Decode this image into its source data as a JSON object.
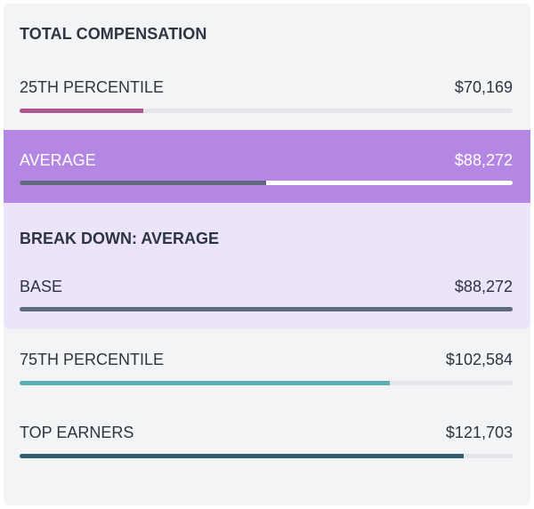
{
  "title": "TOTAL COMPENSATION",
  "rows": {
    "p25": {
      "label": "25TH PERCENTILE",
      "value": "$70,169",
      "fill_fraction": 0.25,
      "color": "#b0548c"
    },
    "average": {
      "label": "AVERAGE",
      "value": "$88,272",
      "fill_fraction": 0.5,
      "color": "#5f6b7d",
      "highlight": "#b487e4"
    },
    "p75": {
      "label": "75TH PERCENTILE",
      "value": "$102,584",
      "fill_fraction": 0.75,
      "color": "#5aaeb5"
    },
    "top": {
      "label": "TOP EARNERS",
      "value": "$121,703",
      "fill_fraction": 0.9,
      "color": "#2e5f6e"
    }
  },
  "breakdown": {
    "title": "BREAK DOWN: AVERAGE",
    "items": [
      {
        "label": "BASE",
        "value": "$88,272",
        "fill_fraction": 1.0,
        "color": "#5f6b7d"
      }
    ]
  }
}
